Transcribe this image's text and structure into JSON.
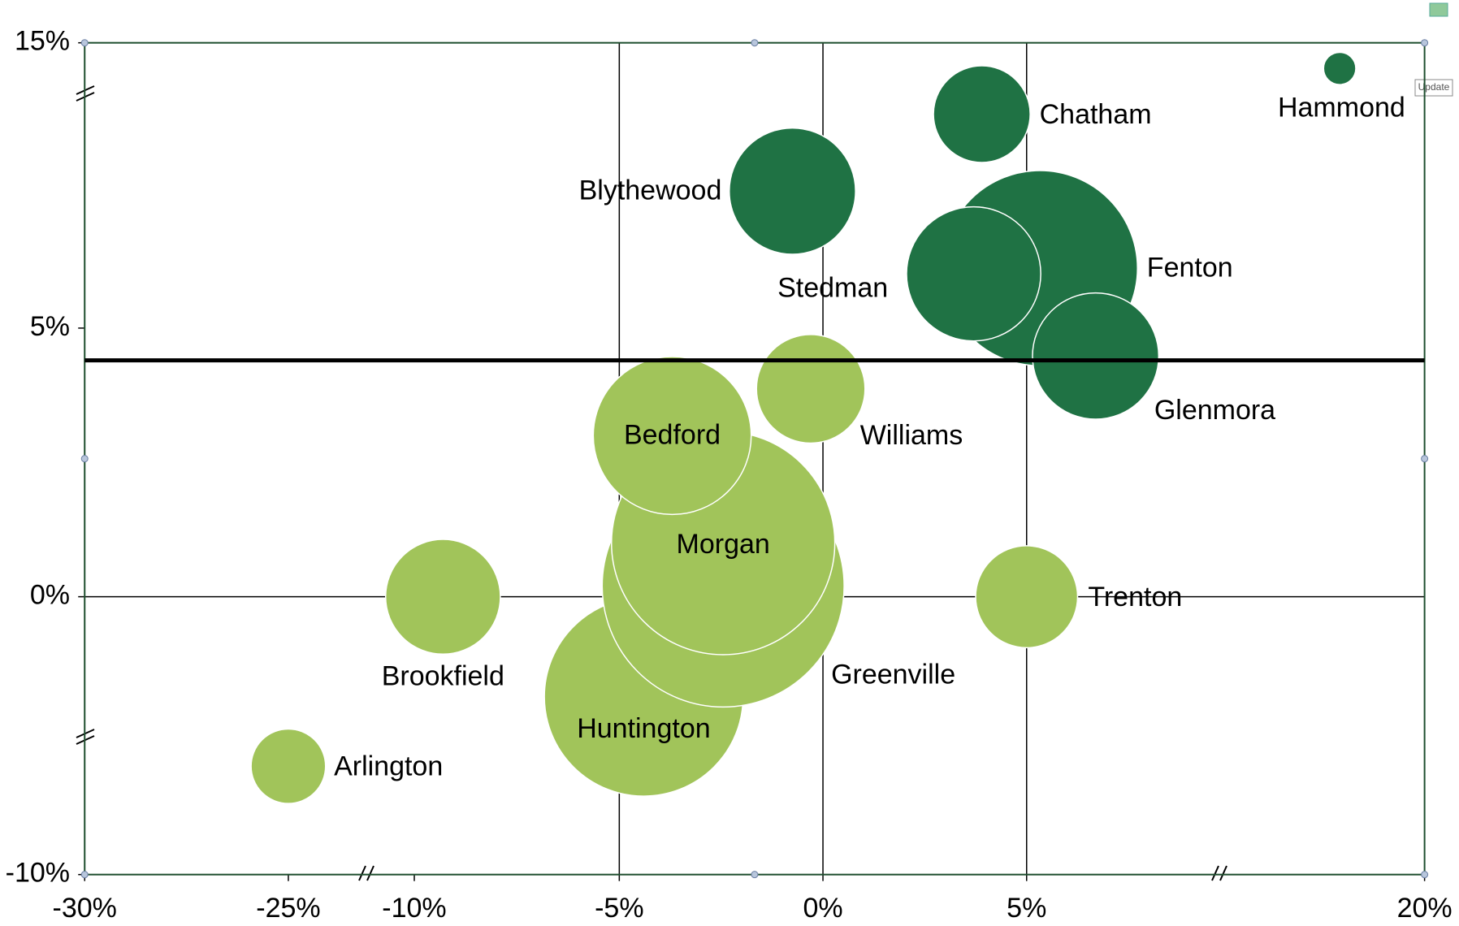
{
  "chart_data": {
    "type": "bubble",
    "xlim": [
      -30,
      20
    ],
    "xticks": [
      {
        "value": -30,
        "label": "-30%"
      },
      {
        "value": -25,
        "label": "-25%"
      },
      {
        "value": -10,
        "label": "-10%"
      },
      {
        "value": -5,
        "label": "-5%"
      },
      {
        "value": 0,
        "label": "0%"
      },
      {
        "value": 5,
        "label": "5%"
      },
      {
        "value": 20,
        "label": "20%"
      }
    ],
    "ylim": [
      -10,
      15
    ],
    "yticks": [
      {
        "value": -10,
        "label": "-10%"
      },
      {
        "value": 0,
        "label": "0%"
      },
      {
        "value": 5,
        "label": "5%"
      },
      {
        "value": 15,
        "label": "15%"
      }
    ],
    "grid": true,
    "reference_line": 4.4,
    "series": [
      {
        "color": "#1f7244",
        "labels": [
          "Hammond",
          "Chatham",
          "Blythewood",
          "Fenton",
          "Stedman",
          "Glenmora"
        ],
        "x": [
          16.8,
          3.9,
          -0.75,
          5.5,
          3.7,
          7.6
        ],
        "y": [
          14.1,
          12.5,
          9.8,
          7.1,
          6.9,
          4.48
        ],
        "size": [
          3,
          27,
          46,
          110,
          52,
          46
        ]
      },
      {
        "color": "#a1c45a",
        "labels": [
          "Huntington",
          "Greenville",
          "Morgan",
          "Bedford",
          "Williams",
          "Brookfield",
          "Trenton",
          "Arlington"
        ],
        "x": [
          -4.4,
          -2.45,
          -2.45,
          -3.7,
          -0.3,
          -9.3,
          5,
          -25
        ],
        "y": [
          -3.6,
          0.2,
          1.0,
          3.0,
          3.87,
          0,
          0,
          -6.1
        ],
        "size": [
          114,
          169,
          144,
          72,
          34,
          38,
          30,
          16
        ]
      }
    ],
    "update_button": "Update"
  }
}
